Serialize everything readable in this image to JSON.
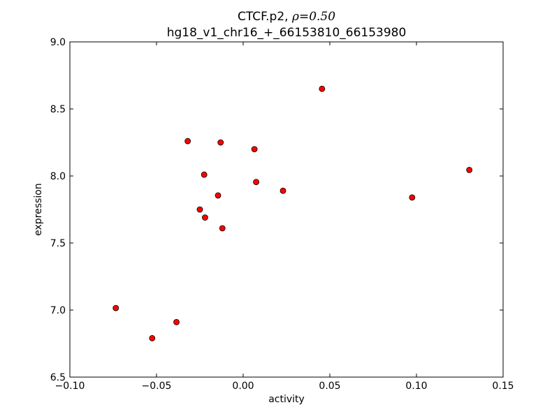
{
  "chart_data": {
    "type": "scatter",
    "title": "CTCF.p2, ρ=0.50",
    "title_prefix": "CTCF.p2, ",
    "title_rho": "ρ=0.50",
    "subtitle": "hg18_v1_chr16_+_66153810_66153980",
    "xlabel": "activity",
    "ylabel": "expression",
    "xlim": [
      -0.1,
      0.15
    ],
    "ylim": [
      6.5,
      9.0
    ],
    "xticks": [
      -0.1,
      -0.05,
      0.0,
      0.05,
      0.1,
      0.15
    ],
    "xtick_labels": [
      "−0.10",
      "−0.05",
      "0.00",
      "0.05",
      "0.10",
      "0.15"
    ],
    "yticks": [
      6.5,
      7.0,
      7.5,
      8.0,
      8.5,
      9.0
    ],
    "ytick_labels": [
      "6.5",
      "7.0",
      "7.5",
      "8.0",
      "8.5",
      "9.0"
    ],
    "grid": false,
    "marker_color": "#ff0000",
    "points": [
      {
        "x": -0.0735,
        "y": 7.015
      },
      {
        "x": -0.0525,
        "y": 6.79
      },
      {
        "x": -0.0385,
        "y": 6.91
      },
      {
        "x": -0.032,
        "y": 8.26
      },
      {
        "x": -0.025,
        "y": 7.75
      },
      {
        "x": -0.0225,
        "y": 8.01
      },
      {
        "x": -0.022,
        "y": 7.69
      },
      {
        "x": -0.0145,
        "y": 7.855
      },
      {
        "x": -0.013,
        "y": 8.25
      },
      {
        "x": -0.012,
        "y": 7.61
      },
      {
        "x": 0.0065,
        "y": 8.2
      },
      {
        "x": 0.0075,
        "y": 7.955
      },
      {
        "x": 0.023,
        "y": 7.89
      },
      {
        "x": 0.0455,
        "y": 8.65
      },
      {
        "x": 0.0975,
        "y": 7.84
      },
      {
        "x": 0.1305,
        "y": 8.045
      }
    ]
  }
}
